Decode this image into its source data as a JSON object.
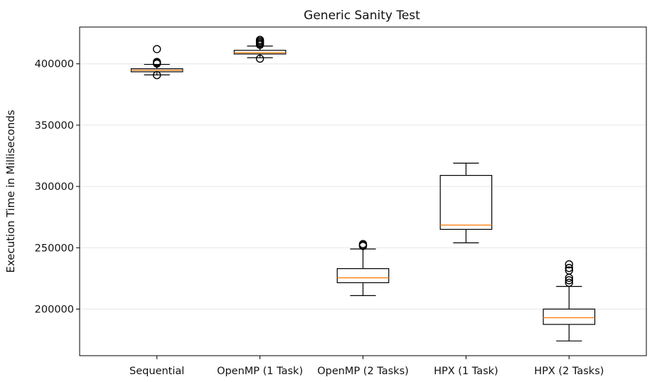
{
  "chart_data": {
    "type": "box",
    "title": "Generic Sanity Test",
    "xlabel": "",
    "ylabel": "Execution Time in Milliseconds",
    "ylim": [
      162000,
      430000
    ],
    "yticks": [
      200000,
      250000,
      300000,
      350000,
      400000
    ],
    "grid": "horizontal",
    "colors": {
      "box": "#000000",
      "median": "#ff7f0e",
      "grid": "#e6e6e6"
    },
    "categories": [
      "Sequential",
      "OpenMP (1 Task)",
      "OpenMP (2 Tasks)",
      "HPX (1 Task)",
      "HPX (2 Tasks)"
    ],
    "boxes": [
      {
        "name": "Sequential",
        "whisker_low": 391000,
        "q1": 393500,
        "median": 394800,
        "q3": 396000,
        "whisker_high": 399500,
        "fliers": [
          412000,
          401500,
          400800,
          400200,
          390800
        ]
      },
      {
        "name": "OpenMP (1 Task)",
        "whisker_low": 405000,
        "q1": 408000,
        "median": 409000,
        "q3": 411000,
        "whisker_high": 414500,
        "fliers": [
          419500,
          418500,
          417500,
          416500,
          415500,
          404200
        ]
      },
      {
        "name": "OpenMP (2 Tasks)",
        "whisker_low": 211000,
        "q1": 221500,
        "median": 225500,
        "q3": 233000,
        "whisker_high": 249000,
        "fliers": [
          253000,
          252000,
          251500
        ]
      },
      {
        "name": "HPX (1 Task)",
        "whisker_low": 254000,
        "q1": 265000,
        "median": 268500,
        "q3": 309000,
        "whisker_high": 319000,
        "fliers": []
      },
      {
        "name": "HPX (2 Tasks)",
        "whisker_low": 174000,
        "q1": 187500,
        "median": 193000,
        "q3": 200000,
        "whisker_high": 218500,
        "fliers": [
          236500,
          233500,
          231500,
          225500,
          223500,
          221500
        ]
      }
    ]
  }
}
